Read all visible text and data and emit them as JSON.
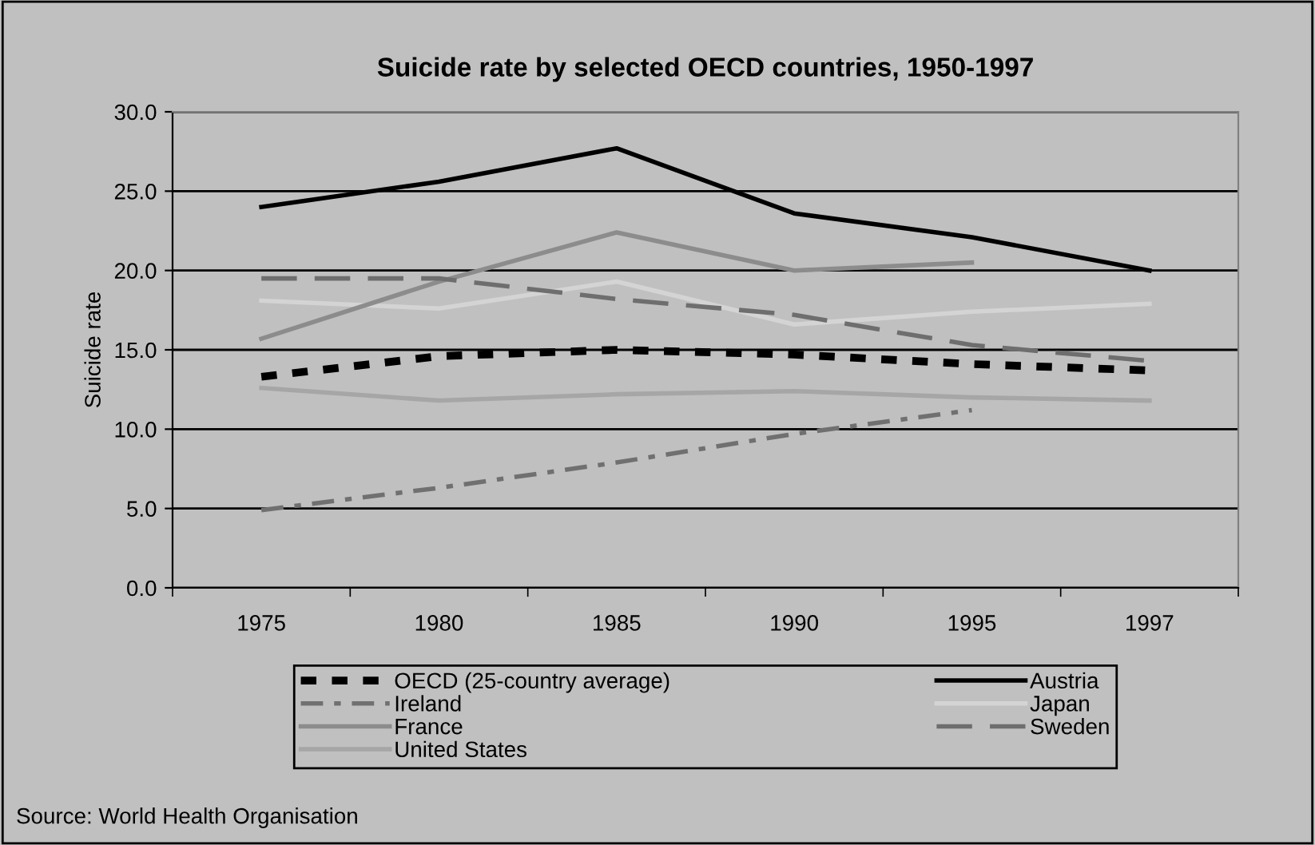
{
  "chart_data": {
    "type": "line",
    "title": "Suicide rate by selected OECD countries, 1950-1997",
    "ylabel": "Suicide rate",
    "categories": [
      "1975",
      "1980",
      "1985",
      "1990",
      "1995",
      "1997"
    ],
    "ylim": [
      0,
      30
    ],
    "yticks": [
      {
        "value": 0,
        "label": "0.0"
      },
      {
        "value": 5,
        "label": "5.0"
      },
      {
        "value": 10,
        "label": "10.0"
      },
      {
        "value": 15,
        "label": "15.0"
      },
      {
        "value": 20,
        "label": "20.0"
      },
      {
        "value": 25,
        "label": "25.0"
      },
      {
        "value": 30,
        "label": "30.0"
      }
    ],
    "grid": "y",
    "legend": "bottom",
    "marker": "none",
    "series": [
      {
        "name": "OECD (25-country average)",
        "color": "#000000",
        "line_style": "dotted",
        "values": [
          13.3,
          14.6,
          15.0,
          14.7,
          14.1,
          13.7
        ]
      },
      {
        "name": "Austria",
        "color": "#000000",
        "line_style": "solid",
        "values": [
          24.0,
          25.6,
          27.7,
          23.6,
          22.1,
          20.0
        ]
      },
      {
        "name": "Ireland",
        "color": "#707070",
        "line_style": "dashdot",
        "values": [
          4.9,
          6.3,
          7.9,
          9.7,
          11.2,
          null
        ]
      },
      {
        "name": "Japan",
        "color": "#d4d4d4",
        "line_style": "solid",
        "values": [
          18.1,
          17.6,
          19.3,
          16.6,
          17.4,
          17.9
        ]
      },
      {
        "name": "France",
        "color": "#8c8c8c",
        "line_style": "solid",
        "values": [
          15.7,
          19.3,
          22.4,
          20.0,
          20.5,
          null
        ]
      },
      {
        "name": "Sweden",
        "color": "#6e6e6e",
        "line_style": "dashed",
        "values": [
          19.5,
          19.5,
          18.2,
          17.2,
          15.3,
          14.3
        ]
      },
      {
        "name": "United States",
        "color": "#a6a6a6",
        "line_style": "solid",
        "values": [
          12.6,
          11.8,
          12.2,
          12.4,
          12.0,
          11.8
        ]
      }
    ],
    "annotations": [
      "Source: World Health Organisation"
    ]
  }
}
